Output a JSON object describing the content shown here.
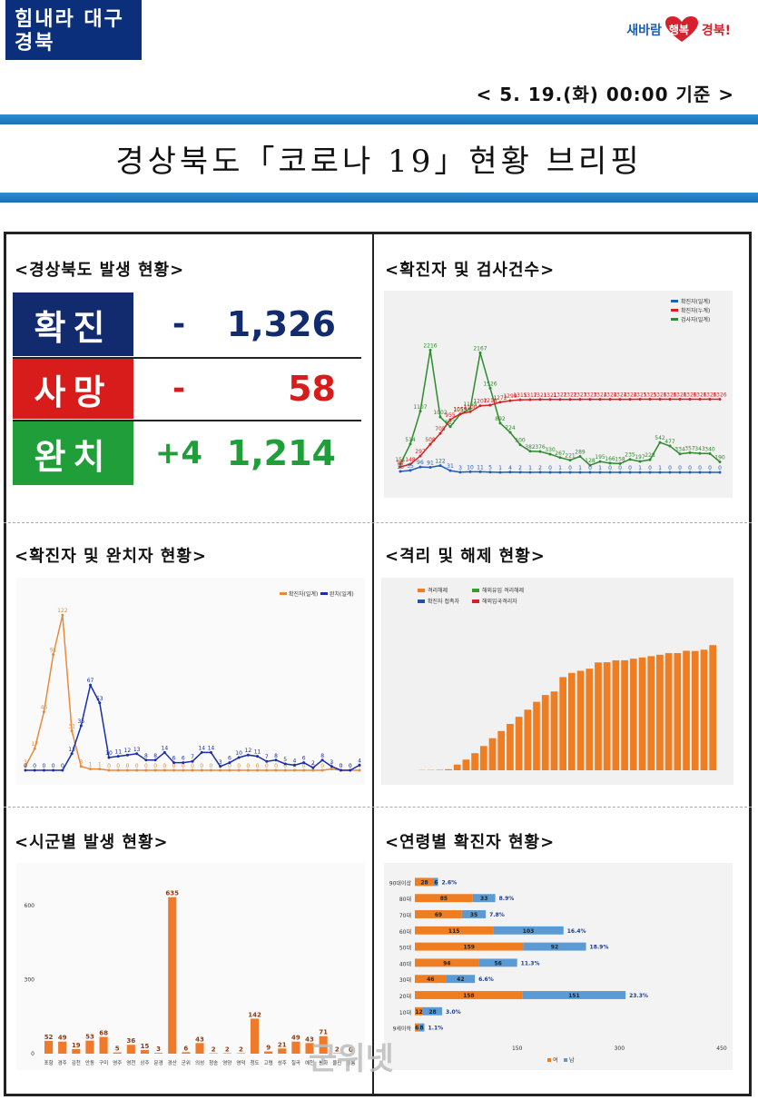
{
  "header": {
    "logo_left": "힘내라 대구경북",
    "logo_right_a": "새바람",
    "logo_right_b": "행복",
    "logo_right_c": "경북!",
    "date": "< 5. 19.(화) 00:00 기준 >",
    "title": "경상북도「코로나 19」현황 브리핑"
  },
  "sections": {
    "occurrence": "<경상북도 발생 현황>",
    "tests": "<확진자 및 검사건수>",
    "recovered": "<확진자 및 완치자 현황>",
    "isolation": "<격리 및 해제 현황>",
    "city": "<시군별 발생 현황>",
    "age": "<연령별 확진자 현황>"
  },
  "stats": [
    {
      "label": "확진",
      "change": "-",
      "value": "1,326",
      "color": "#122a6e",
      "value_color": "#122a6e",
      "change_color": "#122a6e"
    },
    {
      "label": "사망",
      "change": "-",
      "value": "58",
      "color": "#d81c1c",
      "value_color": "#d81c1c",
      "change_color": "#d81c1c"
    },
    {
      "label": "완치",
      "change": "+4",
      "value": "1,214",
      "color": "#1f9e3a",
      "value_color": "#1f9e3a",
      "change_color": "#1f9e3a"
    }
  ],
  "chart_data": [
    {
      "type": "line",
      "legend": [
        "확진자(일계)",
        "확진자(누계)",
        "검사자(일계)"
      ],
      "series": [
        {
          "name": "검사자(일계)",
          "values": [
            151,
            514,
            1107,
            2216,
            1002,
            827,
            1055,
            1155,
            2167,
            1526,
            892,
            724,
            500,
            382,
            376,
            330,
            267,
            221,
            289,
            128,
            195,
            166,
            158,
            235,
            197,
            228,
            542,
            477,
            334,
            357,
            343,
            340,
            190
          ]
        },
        {
          "name": "확진자(누계)",
          "values": [
            98,
            148,
            297,
            508,
            705,
            955,
            1059,
            1100,
            1207,
            1218,
            1272,
            1299,
            1315,
            1317,
            1321,
            1321,
            1322,
            1322,
            1323,
            1323,
            1324,
            1324,
            1324,
            1324,
            1325,
            1325,
            1326,
            1326,
            1326,
            1326,
            1326,
            1326,
            1326
          ]
        },
        {
          "name": "확진자(일계)",
          "values": [
            16,
            35,
            96,
            91,
            122,
            31,
            3,
            10,
            11,
            5,
            1,
            4,
            2,
            1,
            2,
            0,
            1,
            0,
            1,
            0,
            1,
            0,
            0,
            0,
            1,
            0,
            1,
            0,
            0,
            0,
            0,
            0,
            0
          ]
        }
      ]
    },
    {
      "type": "line",
      "legend": [
        "확진자(일계)",
        "완치(일계)"
      ],
      "series": [
        {
          "name": "확진자(일계)",
          "values": [
            3,
            17,
            46,
            91,
            122,
            31,
            3,
            1,
            1,
            0,
            0,
            0,
            0,
            0,
            0,
            0,
            0,
            0,
            0,
            0,
            0,
            0,
            0,
            0,
            0,
            0,
            0,
            0,
            0,
            0,
            0,
            0,
            0,
            1,
            0,
            0,
            0
          ]
        },
        {
          "name": "완치(일계)",
          "values": [
            0,
            0,
            0,
            0,
            0,
            13,
            35,
            67,
            53,
            10,
            11,
            12,
            13,
            8,
            8,
            14,
            6,
            6,
            7,
            14,
            14,
            3,
            6,
            10,
            12,
            11,
            7,
            8,
            5,
            4,
            6,
            2,
            8,
            3,
            0,
            0,
            4
          ]
        }
      ]
    },
    {
      "type": "bar",
      "legend": [
        "격리해제",
        "해외유입 격리해제",
        "확진자 접촉자",
        "해외입국격리자"
      ],
      "values": [
        30,
        40,
        60,
        150,
        800,
        1500,
        2400,
        3400,
        4500,
        5500,
        6500,
        7500,
        8500,
        9600,
        10554,
        11053,
        13063,
        13656,
        13953,
        14246,
        15124,
        15151,
        15417,
        15427,
        15649,
        15821,
        16003,
        16203,
        16424,
        16434,
        16759,
        16728,
        16908,
        17550
      ],
      "left_ylim": [
        0,
        8000
      ]
    },
    {
      "type": "bar",
      "categories": [
        "포항",
        "경주",
        "김천",
        "안동",
        "구미",
        "영주",
        "영천",
        "상주",
        "문경",
        "경산",
        "군위",
        "의성",
        "청송",
        "영양",
        "영덕",
        "청도",
        "고령",
        "성주",
        "칠곡",
        "예천",
        "봉화",
        "울진",
        "울릉"
      ],
      "values": [
        52,
        49,
        19,
        53,
        68,
        5,
        36,
        15,
        3,
        635,
        6,
        43,
        2,
        2,
        2,
        142,
        9,
        21,
        49,
        43,
        71,
        2,
        0
      ],
      "yticks": [
        "0",
        "300",
        "600"
      ],
      "ylim": [
        0,
        700
      ]
    },
    {
      "type": "bar",
      "categories": [
        "90대이상",
        "80대",
        "70대",
        "60대",
        "50대",
        "40대",
        "30대",
        "20대",
        "10대",
        "9세이하"
      ],
      "series": [
        {
          "name": "여",
          "values": [
            28,
            85,
            69,
            115,
            159,
            94,
            46,
            158,
            12,
            6
          ]
        },
        {
          "name": "남",
          "values": [
            6,
            33,
            35,
            103,
            92,
            56,
            42,
            151,
            28,
            8
          ]
        }
      ],
      "percent": [
        "2.6%",
        "8.9%",
        "7.8%",
        "16.4%",
        "18.9%",
        "11.3%",
        "6.6%",
        "23.3%",
        "3.0%",
        "1.1%"
      ],
      "xticks": [
        "150",
        "300",
        "450"
      ],
      "xlim": [
        0,
        450
      ],
      "legend": [
        "여",
        "남"
      ]
    }
  ],
  "watermark": "군위넷"
}
